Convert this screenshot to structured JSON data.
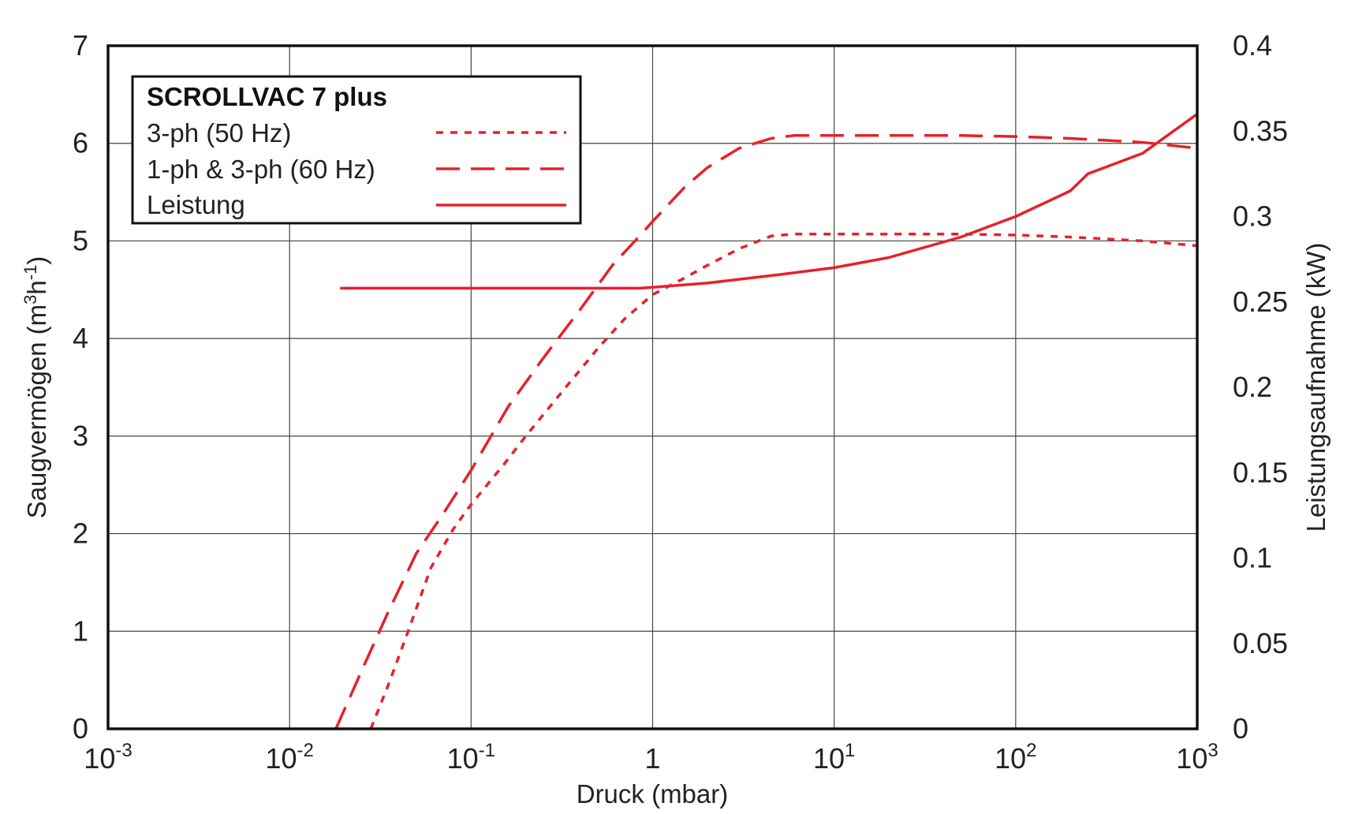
{
  "chart_data": {
    "type": "line",
    "title": "",
    "xlabel": "Druck (mbar)",
    "ylabel_left": {
      "main": "Saugvermögen (m",
      "sup1": "3",
      "mid": "h",
      "sup2": "-1",
      "end": ")"
    },
    "ylabel_right": "Leistungsaufnahme (kW)",
    "x_scale": "log",
    "xlim": [
      0.001,
      1000
    ],
    "ylim_left": [
      0,
      7
    ],
    "ylim_right": [
      0,
      0.4
    ],
    "x_ticks": [
      {
        "value": 0.001,
        "base": "10",
        "exp": "-3"
      },
      {
        "value": 0.01,
        "base": "10",
        "exp": "-2"
      },
      {
        "value": 0.1,
        "base": "10",
        "exp": "-1"
      },
      {
        "value": 1,
        "base": "1",
        "exp": ""
      },
      {
        "value": 10,
        "base": "10",
        "exp": "1"
      },
      {
        "value": 100,
        "base": "10",
        "exp": "2"
      },
      {
        "value": 1000,
        "base": "10",
        "exp": "3"
      }
    ],
    "y_ticks_left": [
      "0",
      "1",
      "2",
      "3",
      "4",
      "5",
      "6",
      "7"
    ],
    "y_ticks_right": [
      "0",
      "0.05",
      "0.1",
      "0.15",
      "0.2",
      "0.25",
      "0.3",
      "0.35",
      "0.4"
    ],
    "grid": true,
    "legend": {
      "title": "SCROLLVAC 7 plus",
      "position": "top-left"
    },
    "color": "#e8202a",
    "series": [
      {
        "name": "3-ph (50 Hz)",
        "axis": "left",
        "dash": "dotted",
        "x": [
          0.028,
          0.035,
          0.045,
          0.06,
          0.08,
          0.1,
          0.15,
          0.2,
          0.3,
          0.5,
          0.7,
          1.0,
          1.5,
          2.0,
          3.0,
          4.5,
          6.0,
          10,
          20,
          50,
          100,
          200,
          500,
          1000
        ],
        "y": [
          0.0,
          0.45,
          1.0,
          1.65,
          2.05,
          2.3,
          2.7,
          3.0,
          3.4,
          3.9,
          4.2,
          4.45,
          4.62,
          4.75,
          4.92,
          5.05,
          5.07,
          5.07,
          5.07,
          5.07,
          5.06,
          5.04,
          5.0,
          4.95
        ]
      },
      {
        "name": "1-ph & 3-ph (60 Hz)",
        "axis": "left",
        "dash": "dashed",
        "x": [
          0.018,
          0.025,
          0.035,
          0.05,
          0.07,
          0.1,
          0.16,
          0.25,
          0.4,
          0.6,
          0.8,
          1.0,
          1.5,
          2.0,
          3.0,
          4.5,
          6.0,
          10,
          20,
          50,
          100,
          200,
          500,
          1000
        ],
        "y": [
          0.0,
          0.6,
          1.2,
          1.8,
          2.2,
          2.65,
          3.3,
          3.8,
          4.3,
          4.75,
          5.0,
          5.2,
          5.55,
          5.75,
          5.95,
          6.05,
          6.08,
          6.08,
          6.08,
          6.08,
          6.07,
          6.05,
          6.01,
          5.95
        ]
      },
      {
        "name": "Leistung",
        "axis": "right",
        "dash": "solid",
        "x": [
          0.019,
          0.1,
          0.5,
          0.85,
          1.0,
          2.0,
          5.0,
          10,
          20,
          50,
          100,
          200,
          250,
          500,
          1000
        ],
        "y": [
          0.258,
          0.258,
          0.258,
          0.258,
          0.2585,
          0.261,
          0.266,
          0.27,
          0.276,
          0.288,
          0.3,
          0.315,
          0.325,
          0.337,
          0.36
        ]
      }
    ]
  }
}
